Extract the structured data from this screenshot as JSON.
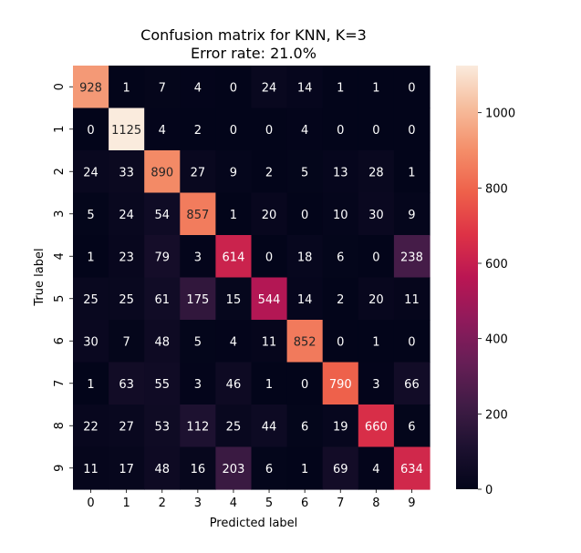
{
  "chart_data": {
    "type": "heatmap",
    "title_line1": "Confusion matrix for KNN, K=3",
    "title_line2": "Error rate: 21.0%",
    "xlabel": "Predicted label",
    "ylabel": "True label",
    "x_categories": [
      "0",
      "1",
      "2",
      "3",
      "4",
      "5",
      "6",
      "7",
      "8",
      "9"
    ],
    "y_categories": [
      "0",
      "1",
      "2",
      "3",
      "4",
      "5",
      "6",
      "7",
      "8",
      "9"
    ],
    "matrix": [
      [
        928,
        1,
        7,
        4,
        0,
        24,
        14,
        1,
        1,
        0
      ],
      [
        0,
        1125,
        4,
        2,
        0,
        0,
        4,
        0,
        0,
        0
      ],
      [
        24,
        33,
        890,
        27,
        9,
        2,
        5,
        13,
        28,
        1
      ],
      [
        5,
        24,
        54,
        857,
        1,
        20,
        0,
        10,
        30,
        9
      ],
      [
        1,
        23,
        79,
        3,
        614,
        0,
        18,
        6,
        0,
        238
      ],
      [
        25,
        25,
        61,
        175,
        15,
        544,
        14,
        2,
        20,
        11
      ],
      [
        30,
        7,
        48,
        5,
        4,
        11,
        852,
        0,
        1,
        0
      ],
      [
        1,
        63,
        55,
        3,
        46,
        1,
        0,
        790,
        3,
        66
      ],
      [
        22,
        27,
        53,
        112,
        25,
        44,
        6,
        19,
        660,
        6
      ],
      [
        11,
        17,
        48,
        16,
        203,
        6,
        1,
        69,
        4,
        634
      ]
    ],
    "colormap": "rocket",
    "vmin": 0,
    "vmax": 1125,
    "colorbar_ticks": [
      0,
      200,
      400,
      600,
      800,
      1000
    ],
    "colorbar_tick_labels": [
      "0",
      "200",
      "400",
      "600",
      "800",
      "1000"
    ]
  }
}
